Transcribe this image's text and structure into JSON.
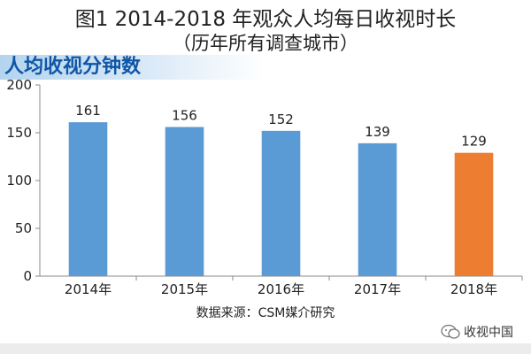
{
  "title": {
    "line1": "图1 2014-2018 年观众人均每日收视时长",
    "line2": "（历年所有调查城市）"
  },
  "banner": {
    "text": "人均收视分钟数"
  },
  "source": "数据来源：CSM媒介研究",
  "watermark": {
    "icon": "wechat-icon",
    "text": "收视中国"
  },
  "colors": {
    "bar_default": "#5b9bd5",
    "bar_highlight": "#ed7d31",
    "banner_text": "#0f56a8"
  },
  "chart_data": {
    "type": "bar",
    "categories": [
      "2014年",
      "2015年",
      "2016年",
      "2017年",
      "2018年"
    ],
    "values": [
      161,
      156,
      152,
      139,
      129
    ],
    "highlight_index": 4,
    "ylabel": "人均收视分钟数",
    "ylim": [
      0,
      200
    ],
    "yticks": [
      0,
      50,
      100,
      150,
      200
    ],
    "grid": false,
    "data_labels": true
  }
}
